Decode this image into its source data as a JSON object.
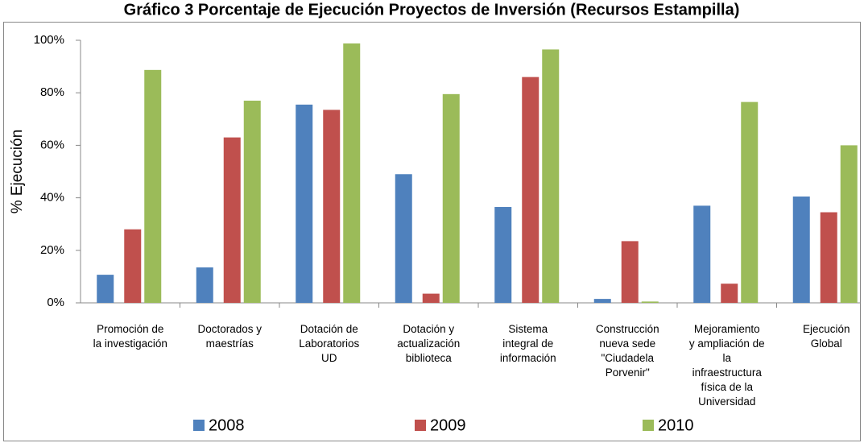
{
  "chart_data": {
    "type": "bar",
    "title": "Gráfico 3 Porcentaje de Ejecución Proyectos de Inversión (Recursos Estampilla)",
    "y_label": "% Ejecución",
    "categories": [
      "Promoción de\nla investigación",
      "Doctorados y\nmaestrías",
      "Dotación de\nLaboratorios\nUD",
      "Dotación y\nactualización\nbiblioteca",
      "Sistema\nintegral de\ninformación",
      "Construcción\nnueva sede\n\"Ciudadela\nPorvenir\"",
      "Mejoramiento\ny ampliación de\nla\ninfraestructura\nfísica de la\nUniversidad",
      "Ejecución\nGlobal"
    ],
    "series": [
      {
        "name": "2008",
        "color": "#4f81bd",
        "values": [
          10.7,
          13.5,
          75.5,
          49,
          36.5,
          1.5,
          37,
          40.5
        ]
      },
      {
        "name": "2009",
        "color": "#c0504d",
        "values": [
          28,
          63,
          73.5,
          3.5,
          86,
          23.5,
          7.3,
          34.5
        ]
      },
      {
        "name": "2010",
        "color": "#9bbb59",
        "values": [
          88.7,
          77,
          98.8,
          79.5,
          96.5,
          0.5,
          76.5,
          60
        ]
      }
    ],
    "ylim": [
      0,
      100
    ],
    "yticks": [
      {
        "value": 0,
        "label": "0%"
      },
      {
        "value": 20,
        "label": "20%"
      },
      {
        "value": 40,
        "label": "40%"
      },
      {
        "value": 60,
        "label": "60%"
      },
      {
        "value": 80,
        "label": "80%"
      },
      {
        "value": 100,
        "label": "100%"
      }
    ],
    "grid": false,
    "legend": "bottom"
  }
}
